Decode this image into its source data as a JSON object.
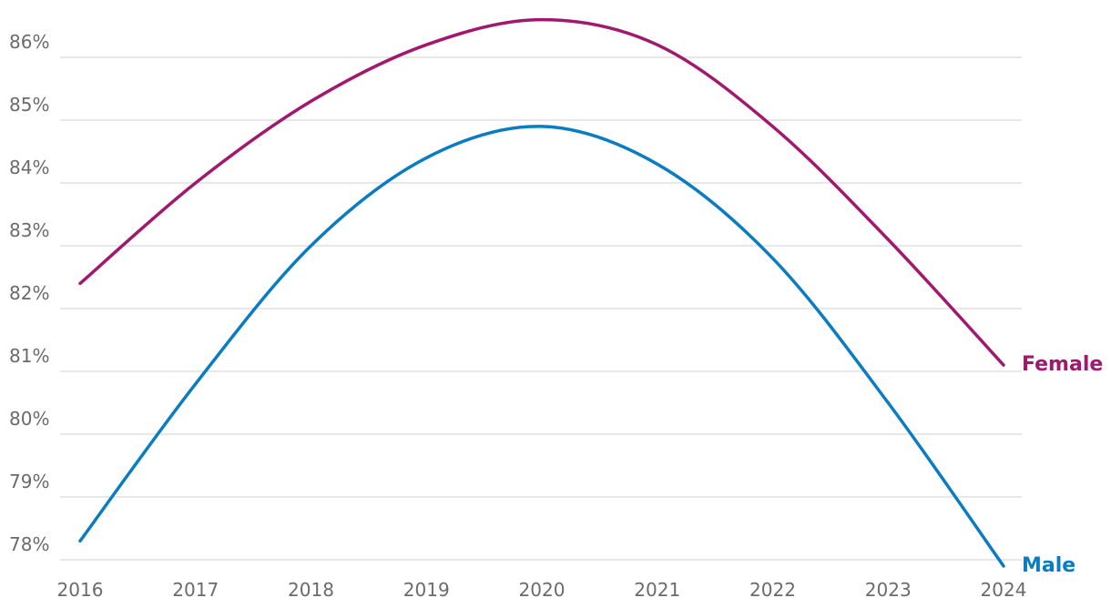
{
  "chart_data": {
    "type": "line",
    "x": [
      "2016",
      "2017",
      "2018",
      "2019",
      "2020",
      "2021",
      "2022",
      "2023",
      "2024"
    ],
    "y_ticks": [
      "78%",
      "79%",
      "80%",
      "81%",
      "82%",
      "83%",
      "84%",
      "85%",
      "86%"
    ],
    "ylim": [
      77.7,
      86.6
    ],
    "grid": true,
    "series": [
      {
        "name": "Female",
        "color": "#a0196e",
        "values": [
          82.4,
          84.0,
          85.3,
          86.2,
          86.6,
          86.2,
          84.9,
          83.1,
          81.1
        ]
      },
      {
        "name": "Male",
        "color": "#0a7cc1",
        "values": [
          78.3,
          80.8,
          83.0,
          84.4,
          84.9,
          84.3,
          82.8,
          80.5,
          77.9
        ]
      }
    ]
  }
}
